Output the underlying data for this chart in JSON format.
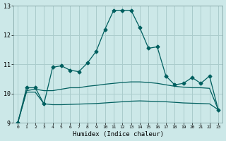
{
  "title": "",
  "xlabel": "Humidex (Indice chaleur)",
  "bg_color": "#cce8e8",
  "grid_color": "#aacccc",
  "line_color": "#005f5f",
  "xlim": [
    -0.5,
    23.5
  ],
  "ylim": [
    9,
    13
  ],
  "yticks": [
    9,
    10,
    11,
    12,
    13
  ],
  "xticks": [
    0,
    1,
    2,
    3,
    4,
    5,
    6,
    7,
    8,
    9,
    10,
    11,
    12,
    13,
    14,
    15,
    16,
    17,
    18,
    19,
    20,
    21,
    22,
    23
  ],
  "series1_x": [
    0,
    1,
    2,
    3,
    4,
    5,
    6,
    7,
    8,
    9,
    10,
    11,
    12,
    13,
    14,
    15,
    16,
    17,
    18,
    19,
    20,
    21,
    22,
    23
  ],
  "series1_y": [
    9.0,
    10.2,
    10.2,
    9.65,
    10.9,
    10.95,
    10.8,
    10.75,
    11.05,
    11.45,
    12.2,
    12.85,
    12.85,
    12.85,
    12.25,
    11.55,
    11.6,
    10.6,
    10.3,
    10.35,
    10.55,
    10.35,
    10.6,
    9.45
  ],
  "series2_x": [
    0,
    1,
    2,
    3,
    4,
    5,
    6,
    7,
    8,
    9,
    10,
    11,
    12,
    13,
    14,
    15,
    16,
    17,
    18,
    19,
    20,
    21,
    22,
    23
  ],
  "series2_y": [
    9.0,
    10.1,
    10.15,
    10.1,
    10.1,
    10.15,
    10.2,
    10.2,
    10.25,
    10.28,
    10.32,
    10.35,
    10.38,
    10.4,
    10.4,
    10.38,
    10.35,
    10.3,
    10.25,
    10.22,
    10.2,
    10.2,
    10.18,
    9.45
  ],
  "series3_x": [
    0,
    1,
    2,
    3,
    4,
    5,
    6,
    7,
    8,
    9,
    10,
    11,
    12,
    13,
    14,
    15,
    16,
    17,
    18,
    19,
    20,
    21,
    22,
    23
  ],
  "series3_y": [
    9.0,
    10.05,
    10.05,
    9.65,
    9.62,
    9.62,
    9.63,
    9.64,
    9.65,
    9.66,
    9.68,
    9.7,
    9.72,
    9.74,
    9.75,
    9.74,
    9.73,
    9.72,
    9.7,
    9.68,
    9.67,
    9.66,
    9.65,
    9.45
  ],
  "marker": "D",
  "markersize": 2.5,
  "linewidth": 0.9
}
